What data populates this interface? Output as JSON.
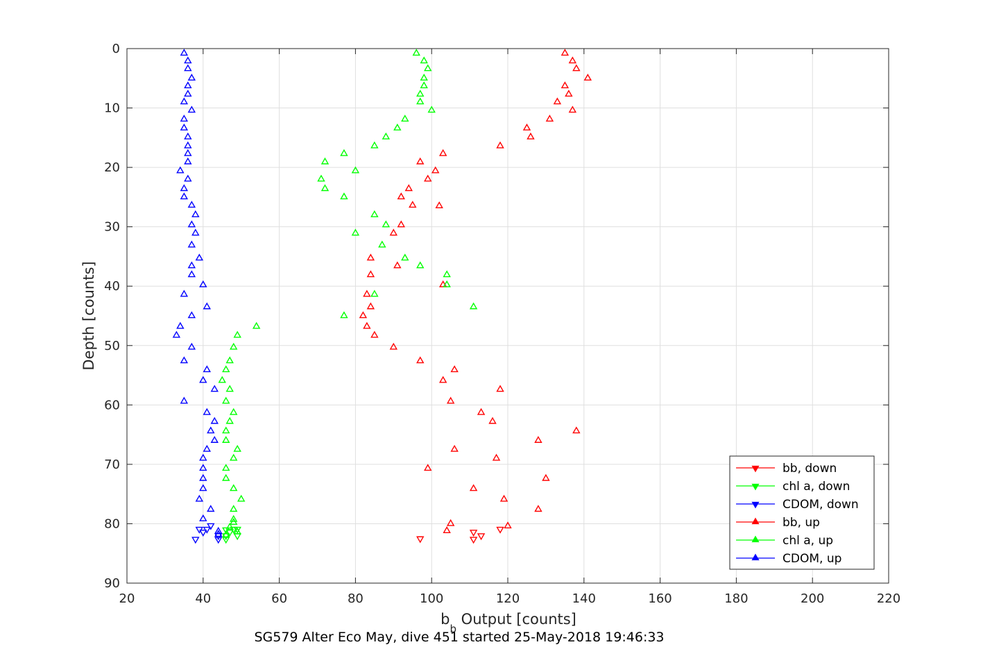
{
  "chart_data": {
    "type": "scatter",
    "title": "",
    "xlabel_main": "b",
    "xlabel_sub": "b",
    "xlabel_rest": " Output [counts]",
    "ylabel": "Depth [counts]",
    "caption": "SG579 Alter Eco May, dive 451 started 25-May-2018 19:46:33",
    "xlim": [
      20,
      220
    ],
    "ylim": [
      0,
      90
    ],
    "y_reversed": true,
    "xticks": [
      "20",
      "40",
      "60",
      "80",
      "100",
      "120",
      "140",
      "160",
      "180",
      "200",
      "220"
    ],
    "yticks": [
      "0",
      "10",
      "20",
      "30",
      "40",
      "50",
      "60",
      "70",
      "80",
      "90"
    ],
    "grid": true,
    "legend_position": "bottom-right",
    "legend": [
      "bb, down",
      "chl a, down",
      "CDOM, down",
      "bb, up",
      "chl a, up",
      "CDOM, up"
    ],
    "series": [
      {
        "name": "bb, down",
        "color": "#ff0000",
        "marker": "triangle-down",
        "points": [
          [
            97,
            82.5
          ],
          [
            111,
            82.6
          ],
          [
            111,
            81.4
          ],
          [
            113,
            82.0
          ],
          [
            118,
            80.9
          ]
        ]
      },
      {
        "name": "chl a, down",
        "color": "#00ff00",
        "marker": "triangle-down",
        "points": [
          [
            46,
            82.6
          ],
          [
            46,
            82.0
          ],
          [
            47,
            81.4
          ],
          [
            48,
            80.9
          ],
          [
            49,
            80.9
          ],
          [
            49,
            82.0
          ],
          [
            46,
            81.0
          ]
        ]
      },
      {
        "name": "CDOM, down",
        "color": "#0000ff",
        "marker": "triangle-down",
        "points": [
          [
            38,
            82.6
          ],
          [
            40,
            81.4
          ],
          [
            41,
            80.9
          ],
          [
            39,
            80.9
          ],
          [
            42,
            80.3
          ],
          [
            44,
            82.6
          ],
          [
            44,
            82.0
          ]
        ]
      },
      {
        "name": "bb, up",
        "color": "#ff0000",
        "marker": "triangle-up",
        "points": [
          [
            135,
            0.8
          ],
          [
            137,
            2.1
          ],
          [
            138,
            3.4
          ],
          [
            141,
            5.0
          ],
          [
            135,
            6.3
          ],
          [
            136,
            7.7
          ],
          [
            133,
            9.0
          ],
          [
            137,
            10.4
          ],
          [
            131,
            11.9
          ],
          [
            125,
            13.4
          ],
          [
            126,
            14.9
          ],
          [
            118,
            16.4
          ],
          [
            103,
            17.7
          ],
          [
            97,
            19.1
          ],
          [
            101,
            20.6
          ],
          [
            99,
            22.0
          ],
          [
            94,
            23.6
          ],
          [
            92,
            25.0
          ],
          [
            95,
            26.4
          ],
          [
            102,
            26.5
          ],
          [
            92,
            29.7
          ],
          [
            90,
            31.1
          ],
          [
            84,
            35.3
          ],
          [
            91,
            36.6
          ],
          [
            84,
            38.1
          ],
          [
            103,
            39.8
          ],
          [
            83,
            41.4
          ],
          [
            84,
            43.5
          ],
          [
            82,
            45.0
          ],
          [
            83,
            46.8
          ],
          [
            85,
            48.3
          ],
          [
            90,
            50.3
          ],
          [
            97,
            52.6
          ],
          [
            106,
            54.1
          ],
          [
            103,
            55.9
          ],
          [
            118,
            57.4
          ],
          [
            105,
            59.4
          ],
          [
            113,
            61.3
          ],
          [
            116,
            62.8
          ],
          [
            138,
            64.4
          ],
          [
            128,
            66.0
          ],
          [
            106,
            67.5
          ],
          [
            117,
            69.0
          ],
          [
            99,
            70.7
          ],
          [
            130,
            72.4
          ],
          [
            111,
            74.1
          ],
          [
            119,
            75.9
          ],
          [
            128,
            77.6
          ],
          [
            105,
            80.0
          ],
          [
            120,
            80.4
          ],
          [
            104,
            81.2
          ]
        ]
      },
      {
        "name": "chl a, up",
        "color": "#00ff00",
        "marker": "triangle-up",
        "points": [
          [
            96,
            0.8
          ],
          [
            98,
            2.1
          ],
          [
            99,
            3.4
          ],
          [
            98,
            5.0
          ],
          [
            98,
            6.3
          ],
          [
            97,
            7.7
          ],
          [
            97,
            9.0
          ],
          [
            100,
            10.4
          ],
          [
            93,
            11.9
          ],
          [
            91,
            13.4
          ],
          [
            88,
            14.9
          ],
          [
            85,
            16.4
          ],
          [
            77,
            17.7
          ],
          [
            72,
            19.1
          ],
          [
            80,
            20.6
          ],
          [
            71,
            22.0
          ],
          [
            72,
            23.6
          ],
          [
            77,
            25.0
          ],
          [
            85,
            28.0
          ],
          [
            88,
            29.7
          ],
          [
            80,
            31.1
          ],
          [
            87,
            33.1
          ],
          [
            93,
            35.3
          ],
          [
            97,
            36.6
          ],
          [
            104,
            38.1
          ],
          [
            104,
            39.8
          ],
          [
            85,
            41.4
          ],
          [
            111,
            43.5
          ],
          [
            77,
            45.0
          ],
          [
            54,
            46.8
          ],
          [
            49,
            48.3
          ],
          [
            48,
            50.3
          ],
          [
            47,
            52.6
          ],
          [
            46,
            54.1
          ],
          [
            45,
            55.9
          ],
          [
            47,
            57.4
          ],
          [
            46,
            59.4
          ],
          [
            48,
            61.3
          ],
          [
            47,
            62.8
          ],
          [
            46,
            64.4
          ],
          [
            46,
            66.0
          ],
          [
            49,
            67.5
          ],
          [
            48,
            69.0
          ],
          [
            46,
            70.7
          ],
          [
            46,
            72.4
          ],
          [
            48,
            74.1
          ],
          [
            50,
            75.9
          ],
          [
            48,
            77.6
          ],
          [
            48,
            79.3
          ],
          [
            48,
            79.8
          ],
          [
            47,
            80.6
          ],
          [
            49,
            81.4
          ],
          [
            46,
            81.9
          ]
        ]
      },
      {
        "name": "CDOM, up",
        "color": "#0000ff",
        "marker": "triangle-up",
        "points": [
          [
            35,
            0.8
          ],
          [
            36,
            2.1
          ],
          [
            36,
            3.4
          ],
          [
            37,
            5.0
          ],
          [
            36,
            6.3
          ],
          [
            36,
            7.7
          ],
          [
            35,
            9.0
          ],
          [
            37,
            10.4
          ],
          [
            35,
            11.9
          ],
          [
            35,
            13.4
          ],
          [
            36,
            14.9
          ],
          [
            36,
            16.4
          ],
          [
            36,
            17.7
          ],
          [
            36,
            19.1
          ],
          [
            34,
            20.6
          ],
          [
            36,
            22.0
          ],
          [
            35,
            23.6
          ],
          [
            35,
            25.0
          ],
          [
            37,
            26.4
          ],
          [
            38,
            28.0
          ],
          [
            37,
            29.7
          ],
          [
            38,
            31.1
          ],
          [
            37,
            33.1
          ],
          [
            39,
            35.3
          ],
          [
            37,
            36.6
          ],
          [
            37,
            38.1
          ],
          [
            40,
            39.8
          ],
          [
            35,
            41.4
          ],
          [
            41,
            43.5
          ],
          [
            37,
            45.0
          ],
          [
            34,
            46.8
          ],
          [
            33,
            48.3
          ],
          [
            37,
            50.3
          ],
          [
            35,
            52.6
          ],
          [
            41,
            54.1
          ],
          [
            40,
            55.9
          ],
          [
            43,
            57.4
          ],
          [
            35,
            59.4
          ],
          [
            41,
            61.3
          ],
          [
            43,
            62.8
          ],
          [
            42,
            64.4
          ],
          [
            43,
            66.0
          ],
          [
            41,
            67.5
          ],
          [
            40,
            69.0
          ],
          [
            40,
            70.7
          ],
          [
            40,
            72.4
          ],
          [
            40,
            74.1
          ],
          [
            39,
            75.9
          ],
          [
            42,
            77.6
          ],
          [
            40,
            79.2
          ],
          [
            44,
            81.3
          ],
          [
            44,
            81.8
          ]
        ]
      }
    ]
  }
}
